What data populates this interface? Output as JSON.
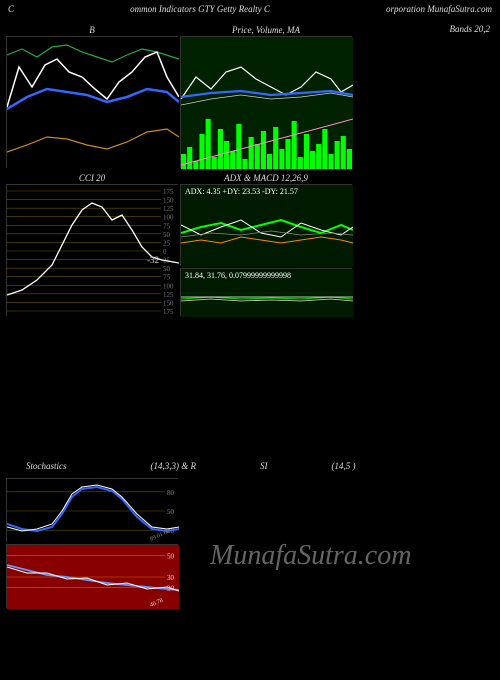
{
  "header": {
    "left": "C",
    "center": "ommon Indicators GTY Getty Realty C",
    "right": "orporation MunafaSutra.com"
  },
  "watermark": "MunafaSutra.com",
  "panels": {
    "bbands_left": {
      "title": "B",
      "width": 172,
      "height": 132,
      "bg": "#000000",
      "series": [
        {
          "color": "#22aa44",
          "width": 1.2,
          "points": [
            [
              0,
              18
            ],
            [
              15,
              12
            ],
            [
              30,
              20
            ],
            [
              45,
              10
            ],
            [
              60,
              8
            ],
            [
              75,
              15
            ],
            [
              90,
              20
            ],
            [
              105,
              25
            ],
            [
              120,
              18
            ],
            [
              135,
              12
            ],
            [
              150,
              15
            ],
            [
              172,
              22
            ]
          ]
        },
        {
          "color": "#ffffff",
          "width": 1.5,
          "points": [
            [
              0,
              70
            ],
            [
              12,
              30
            ],
            [
              25,
              50
            ],
            [
              38,
              28
            ],
            [
              50,
              22
            ],
            [
              62,
              35
            ],
            [
              75,
              40
            ],
            [
              88,
              52
            ],
            [
              100,
              62
            ],
            [
              112,
              45
            ],
            [
              125,
              35
            ],
            [
              138,
              20
            ],
            [
              150,
              15
            ],
            [
              160,
              40
            ],
            [
              172,
              60
            ]
          ]
        },
        {
          "color": "#3366ff",
          "width": 2.5,
          "points": [
            [
              0,
              72
            ],
            [
              20,
              60
            ],
            [
              40,
              52
            ],
            [
              60,
              55
            ],
            [
              80,
              58
            ],
            [
              100,
              65
            ],
            [
              120,
              60
            ],
            [
              140,
              52
            ],
            [
              160,
              55
            ],
            [
              172,
              65
            ]
          ]
        },
        {
          "color": "#cc8822",
          "width": 1.2,
          "points": [
            [
              0,
              115
            ],
            [
              20,
              108
            ],
            [
              40,
              100
            ],
            [
              60,
              102
            ],
            [
              80,
              108
            ],
            [
              100,
              112
            ],
            [
              120,
              105
            ],
            [
              140,
              95
            ],
            [
              160,
              92
            ],
            [
              172,
              100
            ]
          ]
        }
      ]
    },
    "price_ma": {
      "title": "Price, Volume, MA",
      "right_title": "Bands 20,2",
      "width": 172,
      "height": 132,
      "bg": "#002200",
      "volume_color": "#00ff00",
      "volume": [
        15,
        22,
        8,
        35,
        50,
        12,
        40,
        28,
        18,
        45,
        10,
        32,
        25,
        38,
        15,
        42,
        20,
        30,
        48,
        12,
        35,
        18,
        25,
        40,
        15,
        28,
        33,
        20
      ],
      "series": [
        {
          "color": "#ffffff",
          "width": 1.2,
          "points": [
            [
              0,
              62
            ],
            [
              15,
              40
            ],
            [
              30,
              52
            ],
            [
              45,
              35
            ],
            [
              60,
              30
            ],
            [
              75,
              42
            ],
            [
              90,
              50
            ],
            [
              105,
              58
            ],
            [
              120,
              50
            ],
            [
              135,
              35
            ],
            [
              150,
              42
            ],
            [
              160,
              55
            ],
            [
              172,
              48
            ]
          ]
        },
        {
          "color": "#3366ff",
          "width": 2.2,
          "points": [
            [
              0,
              60
            ],
            [
              30,
              56
            ],
            [
              60,
              54
            ],
            [
              90,
              58
            ],
            [
              120,
              56
            ],
            [
              150,
              54
            ],
            [
              172,
              58
            ]
          ]
        },
        {
          "color": "#cccccc",
          "width": 0.8,
          "points": [
            [
              0,
              68
            ],
            [
              30,
              62
            ],
            [
              60,
              58
            ],
            [
              90,
              62
            ],
            [
              120,
              60
            ],
            [
              150,
              56
            ],
            [
              172,
              60
            ]
          ]
        },
        {
          "color": "#ff88cc",
          "width": 1,
          "points": [
            [
              0,
              128
            ],
            [
              30,
              120
            ],
            [
              60,
              112
            ],
            [
              90,
              104
            ],
            [
              120,
              96
            ],
            [
              150,
              88
            ],
            [
              172,
              82
            ]
          ]
        }
      ]
    },
    "cci": {
      "title": "CCI 20",
      "width": 172,
      "height": 132,
      "bg": "#000000",
      "grid_color": "#665500",
      "levels": [
        175,
        150,
        125,
        100,
        75,
        50,
        25,
        0,
        -25,
        -50,
        -75,
        -100,
        -125,
        -150,
        -175
      ],
      "value_label": "-32",
      "series": [
        {
          "color": "#ffffff",
          "width": 1.3,
          "points": [
            [
              0,
              110
            ],
            [
              15,
              105
            ],
            [
              30,
              95
            ],
            [
              45,
              80
            ],
            [
              55,
              60
            ],
            [
              65,
              40
            ],
            [
              75,
              25
            ],
            [
              85,
              18
            ],
            [
              95,
              22
            ],
            [
              105,
              35
            ],
            [
              115,
              30
            ],
            [
              125,
              45
            ],
            [
              135,
              62
            ],
            [
              145,
              72
            ],
            [
              155,
              75
            ],
            [
              172,
              78
            ]
          ]
        }
      ]
    },
    "adx_macd": {
      "title": "ADX & MACD 12,26,9",
      "label_inside": "ADX: 4.35 +DY: 23.53 -DY: 21.57",
      "width": 172,
      "height": 82,
      "bg": "#001a00",
      "series": [
        {
          "color": "#00ff00",
          "width": 2,
          "points": [
            [
              0,
              48
            ],
            [
              20,
              42
            ],
            [
              40,
              38
            ],
            [
              60,
              45
            ],
            [
              80,
              40
            ],
            [
              100,
              35
            ],
            [
              120,
              42
            ],
            [
              140,
              48
            ],
            [
              160,
              40
            ],
            [
              172,
              45
            ]
          ]
        },
        {
          "color": "#ffffff",
          "width": 1,
          "points": [
            [
              0,
              40
            ],
            [
              20,
              50
            ],
            [
              40,
              42
            ],
            [
              60,
              35
            ],
            [
              80,
              48
            ],
            [
              100,
              52
            ],
            [
              120,
              38
            ],
            [
              140,
              45
            ],
            [
              160,
              50
            ],
            [
              172,
              42
            ]
          ]
        },
        {
          "color": "#ff8800",
          "width": 1,
          "points": [
            [
              0,
              58
            ],
            [
              20,
              55
            ],
            [
              40,
              58
            ],
            [
              60,
              52
            ],
            [
              80,
              55
            ],
            [
              100,
              58
            ],
            [
              120,
              55
            ],
            [
              140,
              52
            ],
            [
              160,
              55
            ],
            [
              172,
              58
            ]
          ]
        },
        {
          "color": "#888888",
          "width": 0.8,
          "points": [
            [
              0,
              52
            ],
            [
              30,
              48
            ],
            [
              60,
              50
            ],
            [
              90,
              46
            ],
            [
              120,
              50
            ],
            [
              150,
              48
            ],
            [
              172,
              50
            ]
          ]
        }
      ]
    },
    "values_panel": {
      "label_inside": "31.84, 31.76, 0.07999999999998",
      "width": 172,
      "height": 48,
      "bg": "#001a00",
      "series": [
        {
          "color": "#00dd00",
          "width": 1,
          "points": [
            [
              0,
              30
            ],
            [
              30,
              28
            ],
            [
              60,
              30
            ],
            [
              90,
              29
            ],
            [
              120,
              30
            ],
            [
              150,
              28
            ],
            [
              172,
              30
            ]
          ]
        },
        {
          "color": "#ffcccc",
          "width": 0.8,
          "points": [
            [
              0,
              32
            ],
            [
              30,
              30
            ],
            [
              60,
              32
            ],
            [
              90,
              31
            ],
            [
              120,
              32
            ],
            [
              150,
              30
            ],
            [
              172,
              32
            ]
          ]
        },
        {
          "color": "#ffffff",
          "width": 0.8,
          "points": [
            [
              0,
              28
            ],
            [
              172,
              28
            ]
          ]
        }
      ]
    },
    "stoch": {
      "title": "Stochastics",
      "title_right": "(14,3,3) & R",
      "title_far": "SI",
      "title_end": "(14,5                    )",
      "width": 172,
      "height": 64,
      "bg": "#000000",
      "grid_color": "#665500",
      "levels": [
        80,
        50,
        20
      ],
      "series": [
        {
          "color": "#3366ff",
          "width": 2,
          "points": [
            [
              0,
              45
            ],
            [
              15,
              50
            ],
            [
              30,
              52
            ],
            [
              45,
              48
            ],
            [
              55,
              35
            ],
            [
              65,
              18
            ],
            [
              75,
              10
            ],
            [
              90,
              8
            ],
            [
              105,
              12
            ],
            [
              115,
              20
            ],
            [
              130,
              38
            ],
            [
              145,
              50
            ],
            [
              160,
              52
            ],
            [
              172,
              50
            ]
          ]
        },
        {
          "color": "#ffffff",
          "width": 1,
          "points": [
            [
              0,
              48
            ],
            [
              15,
              52
            ],
            [
              30,
              50
            ],
            [
              45,
              45
            ],
            [
              55,
              32
            ],
            [
              65,
              15
            ],
            [
              75,
              8
            ],
            [
              90,
              6
            ],
            [
              105,
              10
            ],
            [
              115,
              18
            ],
            [
              130,
              35
            ],
            [
              145,
              48
            ],
            [
              160,
              50
            ],
            [
              172,
              48
            ]
          ]
        }
      ],
      "axis_label": "89.01 80"
    },
    "rsi": {
      "width": 172,
      "height": 64,
      "bg": "#880000",
      "grid_color": "#cc6600",
      "levels": [
        50,
        30,
        20
      ],
      "series": [
        {
          "color": "#6699ff",
          "width": 1.8,
          "points": [
            [
              0,
              20
            ],
            [
              20,
              25
            ],
            [
              40,
              30
            ],
            [
              60,
              32
            ],
            [
              80,
              35
            ],
            [
              100,
              38
            ],
            [
              120,
              40
            ],
            [
              140,
              42
            ],
            [
              160,
              44
            ],
            [
              172,
              45
            ]
          ]
        },
        {
          "color": "#ffffff",
          "width": 1,
          "points": [
            [
              0,
              22
            ],
            [
              20,
              28
            ],
            [
              40,
              28
            ],
            [
              60,
              34
            ],
            [
              80,
              33
            ],
            [
              100,
              40
            ],
            [
              120,
              38
            ],
            [
              140,
              44
            ],
            [
              160,
              42
            ],
            [
              172,
              46
            ]
          ]
        }
      ],
      "axis_label": "40.78"
    }
  }
}
